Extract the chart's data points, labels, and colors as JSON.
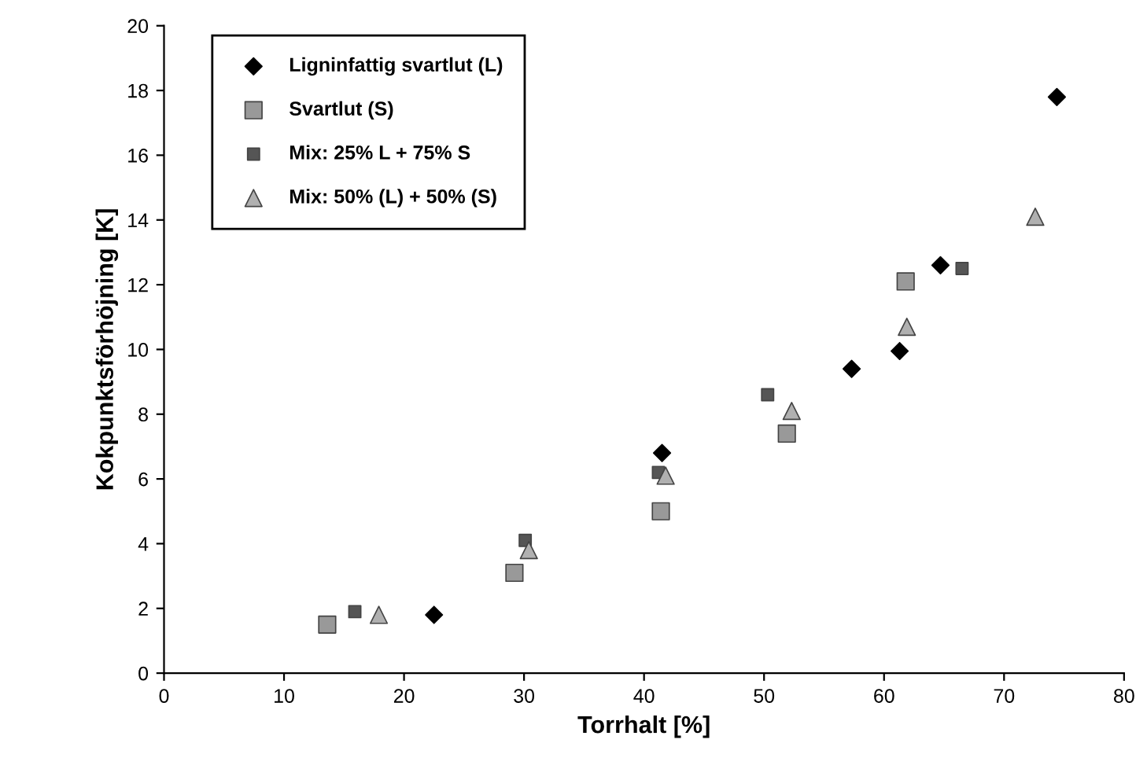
{
  "chart_data": {
    "type": "scatter",
    "xlabel": "Torrhalt [%]",
    "ylabel": "Kokpunktsförhöjning [K]",
    "xlim": [
      0,
      80
    ],
    "ylim": [
      0,
      20
    ],
    "xticks": [
      0,
      10,
      20,
      30,
      40,
      50,
      60,
      70,
      80
    ],
    "yticks": [
      0,
      2,
      4,
      6,
      8,
      10,
      12,
      14,
      16,
      18,
      20
    ],
    "grid": false,
    "legend": "top left",
    "series": [
      {
        "name": "Ligninfattig svartlut (L)",
        "color": "#000000",
        "marker": "diamond",
        "x": [
          22.5,
          41.5,
          57.3,
          61.3,
          64.7,
          74.4
        ],
        "values": [
          1.8,
          6.8,
          9.4,
          9.95,
          12.6,
          17.8
        ]
      },
      {
        "name": "Svartlut (S)",
        "color": "#999999",
        "marker": "square",
        "x": [
          13.6,
          29.2,
          41.4,
          51.9,
          61.8
        ],
        "values": [
          1.5,
          3.1,
          5.0,
          7.4,
          12.1
        ]
      },
      {
        "name": "Mix: 25% L + 75% S",
        "color": "#555555",
        "marker": "square",
        "x": [
          15.9,
          30.1,
          41.2,
          50.3,
          66.5
        ],
        "values": [
          1.9,
          4.1,
          6.2,
          8.6,
          12.5
        ]
      },
      {
        "name": "Mix: 50% (L) + 50% (S)",
        "color": "#b0b0b0",
        "marker": "triangle",
        "x": [
          17.9,
          30.4,
          41.8,
          52.3,
          61.9,
          72.6
        ],
        "values": [
          1.8,
          3.8,
          6.1,
          8.1,
          10.7,
          14.1
        ]
      }
    ]
  }
}
